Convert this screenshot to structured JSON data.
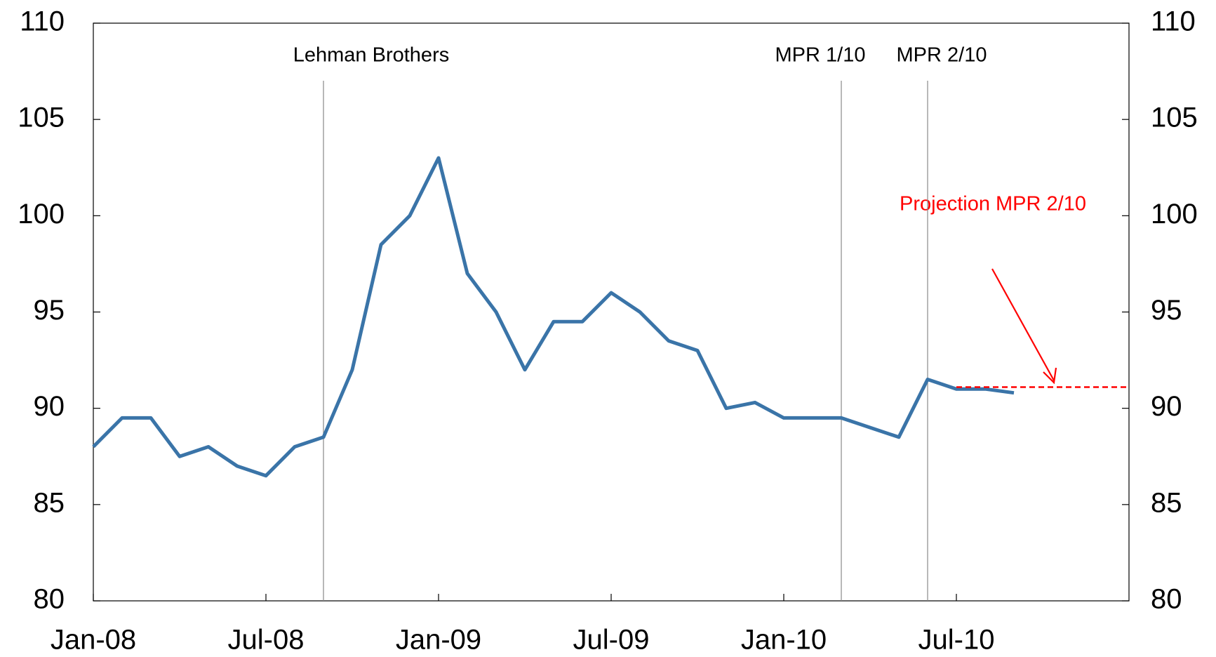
{
  "chart_data": {
    "type": "line",
    "x": [
      "2008-01",
      "2008-02",
      "2008-03",
      "2008-04",
      "2008-05",
      "2008-06",
      "2008-07",
      "2008-08",
      "2008-09",
      "2008-10",
      "2008-11",
      "2008-12",
      "2009-01",
      "2009-02",
      "2009-03",
      "2009-04",
      "2009-05",
      "2009-06",
      "2009-07",
      "2009-08",
      "2009-09",
      "2009-10",
      "2009-11",
      "2009-12",
      "2010-01",
      "2010-02",
      "2010-03",
      "2010-04",
      "2010-05",
      "2010-06",
      "2010-07",
      "2010-08",
      "2010-09"
    ],
    "series": [
      {
        "color": "#3a74a8",
        "values": [
          88,
          89.5,
          89.5,
          87.5,
          88,
          87,
          86.5,
          88,
          88.5,
          92,
          98.5,
          100,
          103,
          97,
          95,
          92,
          94.5,
          94.5,
          96,
          95,
          93.5,
          93,
          90,
          90.3,
          89.5,
          89.5,
          89.5,
          89,
          88.5,
          91.5,
          91,
          91,
          90.8
        ]
      }
    ],
    "projection": {
      "color": "#ff0000",
      "x": [
        "2010-07",
        "2011-01"
      ],
      "values": [
        91.1,
        91.1
      ]
    },
    "xlim": [
      "2008-01",
      "2011-01"
    ],
    "xticks": [
      {
        "value": "2008-01",
        "label": "Jan-08"
      },
      {
        "value": "2008-07",
        "label": "Jul-08"
      },
      {
        "value": "2009-01",
        "label": "Jan-09"
      },
      {
        "value": "2009-07",
        "label": "Jul-09"
      },
      {
        "value": "2010-01",
        "label": "Jan-10"
      },
      {
        "value": "2010-07",
        "label": "Jul-10"
      }
    ],
    "ylim": [
      80,
      110
    ],
    "yticks": [
      80,
      85,
      90,
      95,
      100,
      105,
      110
    ],
    "y2lim": [
      80,
      110
    ],
    "y2ticks": [
      80,
      85,
      90,
      95,
      100,
      105,
      110
    ],
    "events": [
      {
        "x": "2008-09",
        "label": "Lehman Brothers"
      },
      {
        "x": "2010-03",
        "label": "MPR 1/10"
      },
      {
        "x": "2010-06",
        "label": "MPR 2/10"
      }
    ],
    "annotation": "Projection MPR 2/10"
  }
}
